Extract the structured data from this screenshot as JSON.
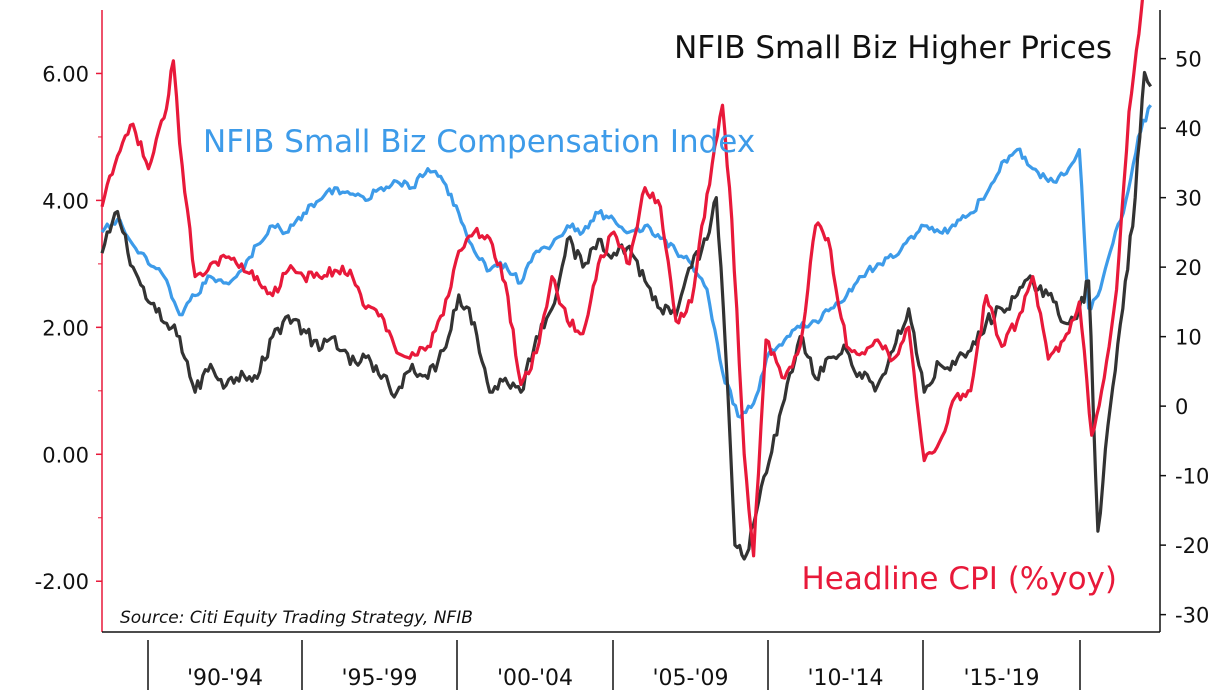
{
  "chart_data": {
    "type": "line",
    "title": "NFIB Small Biz Higher Prices",
    "source": "Source: Citi Equity Trading Strategy, NFIB",
    "x_categories": [
      "'90-'94",
      "'95-'99",
      "'00-'04",
      "'05-'09",
      "'10-'14",
      "'15-'19"
    ],
    "xlim": [
      1988.5,
      2022.6
    ],
    "left_axis": {
      "ticks": [
        "6.00",
        "4.00",
        "2.00",
        "0.00",
        "-2.00"
      ],
      "ylim": [
        -2.8,
        7.0
      ],
      "axis_color": "#e8193a"
    },
    "right_axis": {
      "ticks": [
        "50",
        "40",
        "30",
        "20",
        "10",
        "0",
        "-10",
        "-20",
        "-30"
      ],
      "ylim": [
        -32.5,
        57.0
      ],
      "axis_color": "#111111"
    },
    "series": [
      {
        "name": "NFIB Small Biz Higher Prices",
        "axis": "right",
        "color": "#333333",
        "x": [
          1988.5,
          1989.0,
          1989.5,
          1990.0,
          1990.5,
          1991.0,
          1991.5,
          1992.0,
          1992.5,
          1993.0,
          1993.5,
          1994.0,
          1994.5,
          1995.0,
          1995.5,
          1996.0,
          1996.5,
          1997.0,
          1997.5,
          1998.0,
          1998.5,
          1999.0,
          1999.5,
          2000.0,
          2000.5,
          2001.0,
          2001.5,
          2002.0,
          2002.5,
          2003.0,
          2003.5,
          2004.0,
          2004.5,
          2005.0,
          2005.5,
          2006.0,
          2006.5,
          2007.0,
          2007.5,
          2008.0,
          2008.3,
          2008.6,
          2008.9,
          2009.2,
          2009.5,
          2010.0,
          2010.5,
          2011.0,
          2011.5,
          2012.0,
          2012.5,
          2013.0,
          2013.5,
          2014.0,
          2014.5,
          2015.0,
          2015.5,
          2016.0,
          2016.5,
          2017.0,
          2017.5,
          2018.0,
          2018.5,
          2019.0,
          2019.5,
          2020.0,
          2020.3,
          2020.6,
          2021.0,
          2021.4,
          2021.8,
          2022.1,
          2022.3
        ],
        "values": [
          22,
          28,
          20,
          15,
          12,
          10,
          2,
          6,
          3,
          5,
          4,
          10,
          13,
          11,
          8,
          10,
          6,
          7,
          4,
          2,
          6,
          4,
          8,
          16,
          12,
          2,
          4,
          2,
          10,
          14,
          24,
          20,
          24,
          22,
          23,
          18,
          14,
          13,
          20,
          24,
          30,
          8,
          -20,
          -22,
          -17,
          -8,
          1,
          10,
          4,
          7,
          8,
          4,
          3,
          8,
          14,
          2,
          6,
          6,
          8,
          12,
          14,
          16,
          18,
          16,
          12,
          14,
          18,
          -18,
          0,
          14,
          30,
          48,
          46
        ]
      },
      {
        "name": "NFIB Small Biz Compensation Index",
        "axis": "left",
        "color": "#3d9be9",
        "x": [
          1988.5,
          1989.0,
          1989.5,
          1990.0,
          1990.5,
          1991.0,
          1991.5,
          1992.0,
          1992.5,
          1993.0,
          1993.5,
          1994.0,
          1994.5,
          1995.0,
          1995.5,
          1996.0,
          1996.5,
          1997.0,
          1997.5,
          1998.0,
          1998.5,
          1999.0,
          1999.5,
          2000.0,
          2000.5,
          2001.0,
          2001.5,
          2002.0,
          2002.5,
          2003.0,
          2003.5,
          2004.0,
          2004.5,
          2005.0,
          2005.5,
          2006.0,
          2006.5,
          2007.0,
          2007.5,
          2008.0,
          2008.5,
          2009.0,
          2009.5,
          2010.0,
          2010.5,
          2011.0,
          2011.5,
          2012.0,
          2012.5,
          2013.0,
          2013.5,
          2014.0,
          2014.5,
          2015.0,
          2015.5,
          2016.0,
          2016.5,
          2017.0,
          2017.5,
          2018.0,
          2018.5,
          2019.0,
          2019.5,
          2020.0,
          2020.3,
          2020.6,
          2021.0,
          2021.5,
          2021.9,
          2022.3
        ],
        "values": [
          3.5,
          3.7,
          3.3,
          3.0,
          2.8,
          2.2,
          2.5,
          2.8,
          2.7,
          2.9,
          3.3,
          3.6,
          3.5,
          3.8,
          4.0,
          4.2,
          4.1,
          4.0,
          4.2,
          4.3,
          4.2,
          4.5,
          4.3,
          3.8,
          3.2,
          2.9,
          3.0,
          2.7,
          3.2,
          3.3,
          3.6,
          3.5,
          3.8,
          3.7,
          3.5,
          3.6,
          3.4,
          3.2,
          3.0,
          2.6,
          1.3,
          0.6,
          0.8,
          1.6,
          1.8,
          2.0,
          2.1,
          2.3,
          2.5,
          2.8,
          3.0,
          3.1,
          3.4,
          3.6,
          3.5,
          3.6,
          3.8,
          4.1,
          4.6,
          4.8,
          4.5,
          4.3,
          4.4,
          4.8,
          2.3,
          2.5,
          3.2,
          4.0,
          5.0,
          5.5
        ]
      },
      {
        "name": "Headline CPI (%yoy)",
        "axis": "left",
        "color": "#e8193a",
        "x": [
          1988.5,
          1989.0,
          1989.5,
          1990.0,
          1990.5,
          1990.8,
          1991.0,
          1991.5,
          1992.0,
          1992.5,
          1993.0,
          1993.5,
          1994.0,
          1994.5,
          1995.0,
          1995.5,
          1996.0,
          1996.5,
          1997.0,
          1997.5,
          1998.0,
          1998.5,
          1999.0,
          1999.5,
          2000.0,
          2000.5,
          2001.0,
          2001.5,
          2002.0,
          2002.5,
          2003.0,
          2003.5,
          2004.0,
          2004.5,
          2005.0,
          2005.5,
          2006.0,
          2006.5,
          2007.0,
          2007.5,
          2008.0,
          2008.5,
          2008.8,
          2009.2,
          2009.5,
          2009.9,
          2010.5,
          2011.0,
          2011.5,
          2011.9,
          2012.5,
          2013.0,
          2013.5,
          2014.0,
          2014.5,
          2015.0,
          2015.5,
          2016.0,
          2016.5,
          2017.0,
          2017.5,
          2018.0,
          2018.5,
          2019.0,
          2019.5,
          2020.0,
          2020.4,
          2020.8,
          2021.2,
          2021.6,
          2022.0,
          2022.3
        ],
        "values": [
          3.9,
          4.7,
          5.2,
          4.5,
          5.3,
          6.2,
          4.9,
          2.8,
          3.0,
          3.1,
          3.0,
          2.8,
          2.5,
          2.9,
          2.8,
          2.8,
          2.9,
          2.9,
          2.3,
          2.2,
          1.6,
          1.6,
          1.7,
          2.2,
          3.2,
          3.5,
          3.4,
          2.7,
          1.1,
          1.6,
          2.8,
          2.1,
          1.9,
          3.0,
          3.5,
          3.0,
          4.2,
          3.9,
          2.1,
          2.4,
          4.1,
          5.5,
          3.7,
          0.0,
          -1.6,
          1.8,
          1.2,
          1.7,
          3.6,
          3.4,
          1.7,
          1.6,
          1.8,
          1.5,
          2.0,
          -0.1,
          0.2,
          0.9,
          1.0,
          2.5,
          1.7,
          2.1,
          2.8,
          1.5,
          1.8,
          2.4,
          0.3,
          1.2,
          2.6,
          5.4,
          7.0,
          8.5
        ]
      }
    ]
  }
}
